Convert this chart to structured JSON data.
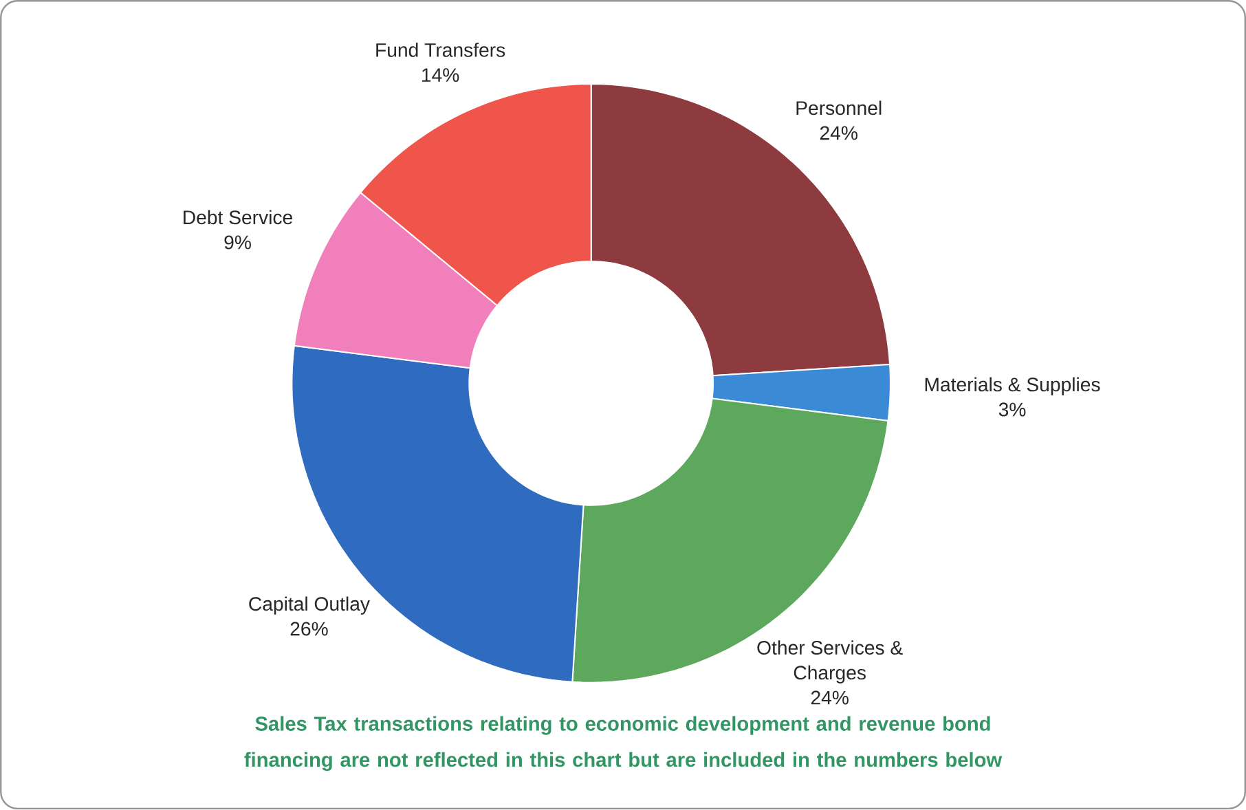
{
  "chart_data": {
    "type": "donut",
    "categories": [
      "Personnel",
      "Materials & Supplies",
      "Other Services & Charges",
      "Capital Outlay",
      "Debt Service",
      "Fund Transfers"
    ],
    "values": [
      24,
      3,
      24,
      26,
      9,
      14
    ],
    "value_labels": [
      "24%",
      "3%",
      "24%",
      "26%",
      "9%",
      "14%"
    ],
    "colors": [
      "#8e3b3f",
      "#3a8ad6",
      "#5ea85e",
      "#2f6cc0",
      "#f07fbc",
      "#f0554c"
    ],
    "annotations": [
      "Sales Tax transactions relating to economic development and revenue bond financing are not reflected in this chart but are included in the numbers below"
    ]
  }
}
